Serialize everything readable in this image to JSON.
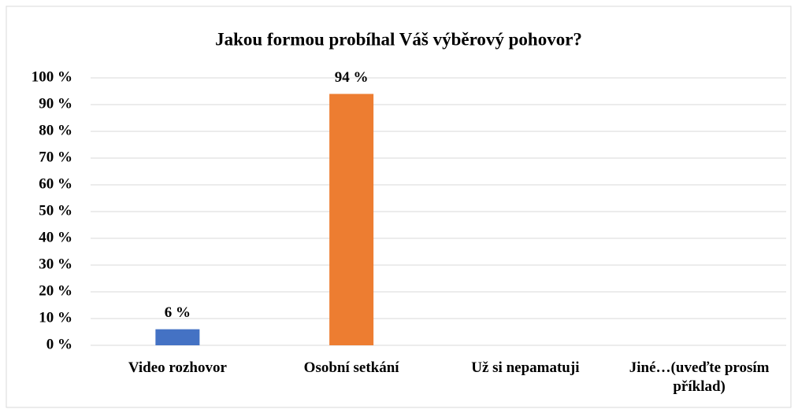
{
  "chart_data": {
    "type": "bar",
    "title": "Jakou formou probíhal Váš výběrový pohovor?",
    "categories": [
      "Video rozhovor",
      "Osobní setkání",
      "Už si nepamatuji",
      "Jiné…(uveďte prosím příklad)"
    ],
    "values": [
      6,
      94,
      null,
      null
    ],
    "value_labels": [
      "6 %",
      "94 %",
      null,
      null
    ],
    "colors": [
      "#4472c4",
      "#ed7d31",
      null,
      null
    ],
    "ylim": [
      0,
      100
    ],
    "yticks": [
      {
        "value": 0,
        "label": "0 %"
      },
      {
        "value": 10,
        "label": "10 %"
      },
      {
        "value": 20,
        "label": "20 %"
      },
      {
        "value": 30,
        "label": "30 %"
      },
      {
        "value": 40,
        "label": "40 %"
      },
      {
        "value": 50,
        "label": "50 %"
      },
      {
        "value": 60,
        "label": "60 %"
      },
      {
        "value": 70,
        "label": "70 %"
      },
      {
        "value": 80,
        "label": "80 %"
      },
      {
        "value": 90,
        "label": "90 %"
      },
      {
        "value": 100,
        "label": "100 %"
      }
    ],
    "grid": true
  }
}
